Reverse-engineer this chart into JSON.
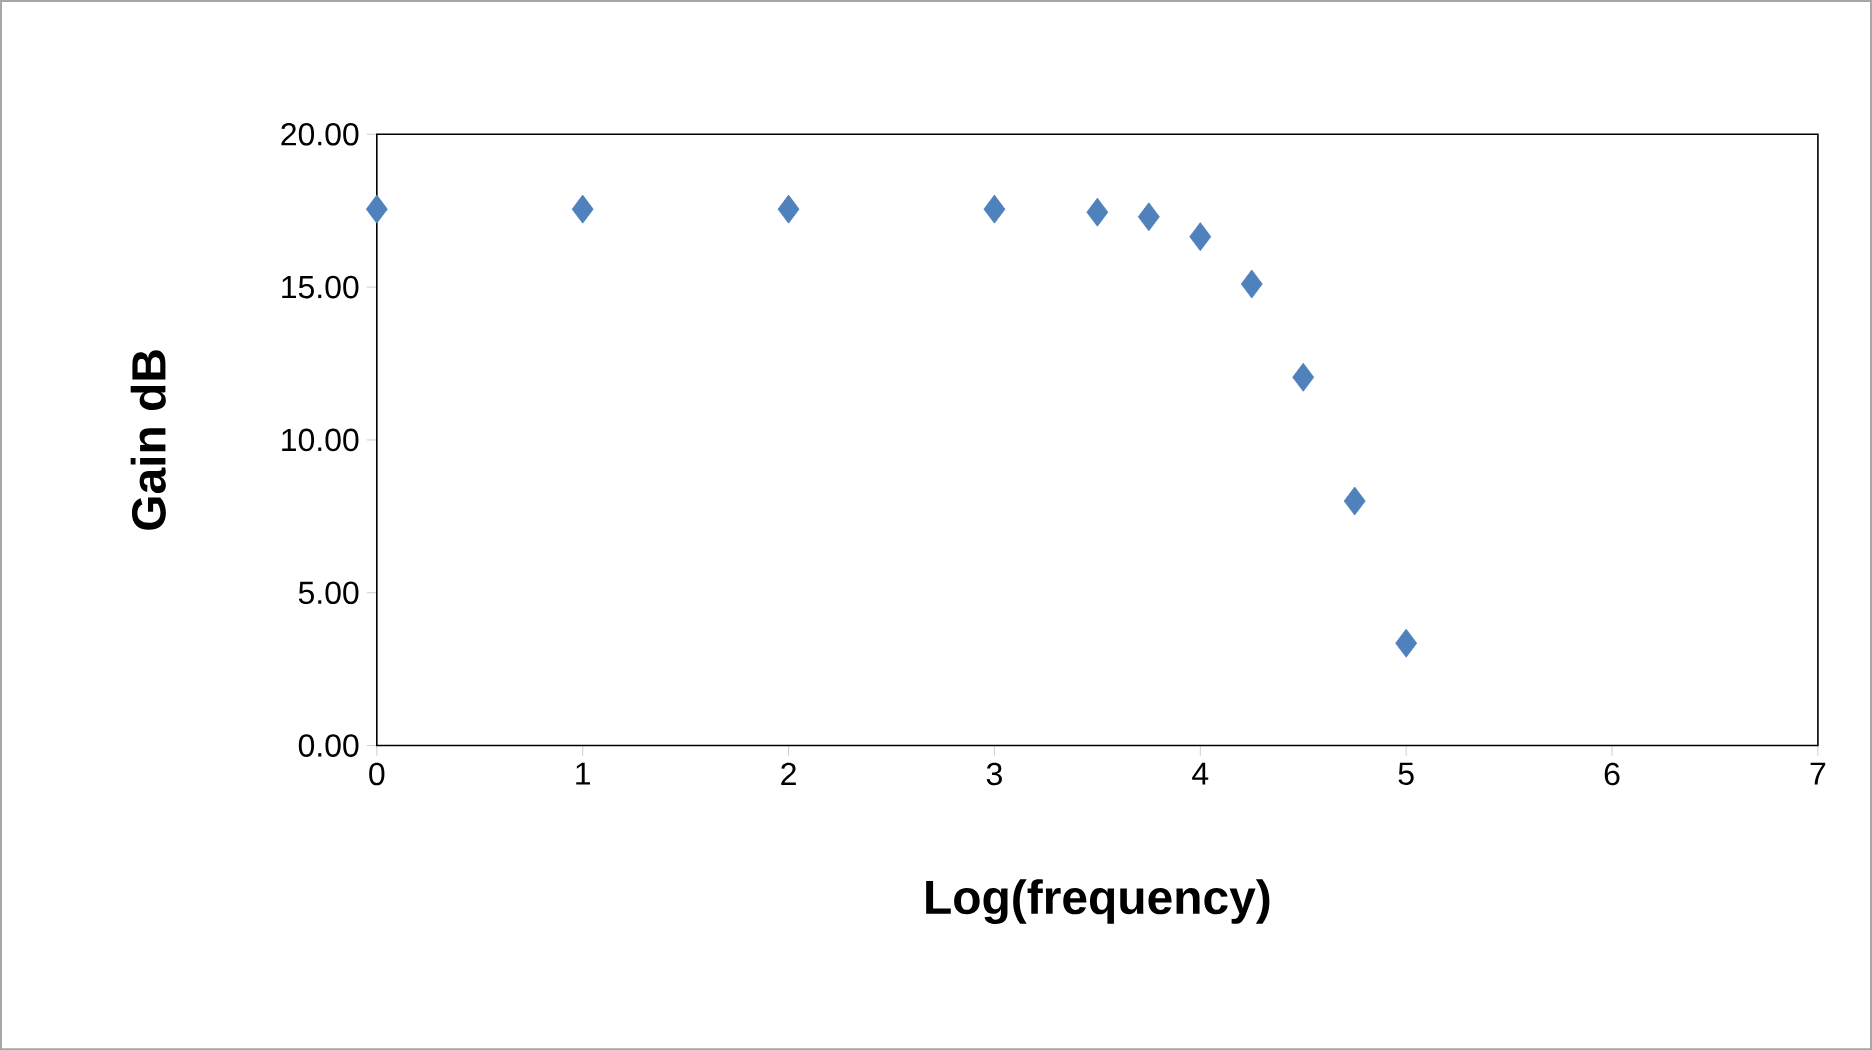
{
  "chart_data": {
    "type": "scatter",
    "xlabel": "Log(frequency)",
    "ylabel": "Gain dB",
    "x": [
      0,
      1,
      2,
      3,
      3.5,
      3.75,
      4,
      4.25,
      4.5,
      4.75,
      5
    ],
    "values": [
      17.55,
      17.55,
      17.55,
      17.55,
      17.45,
      17.3,
      16.65,
      15.1,
      12.05,
      8.0,
      3.35
    ],
    "color": "#4f81bd",
    "marker": "diamond",
    "xlim": [
      0,
      7
    ],
    "xticks": [
      0,
      1,
      2,
      3,
      4,
      5,
      6,
      7
    ],
    "ylim": [
      0,
      20
    ],
    "yticks": [
      {
        "value": 0,
        "label": "0.00"
      },
      {
        "value": 5,
        "label": "5.00"
      },
      {
        "value": 10,
        "label": "10.00"
      },
      {
        "value": 15,
        "label": "15.00"
      },
      {
        "value": 20,
        "label": "20.00"
      }
    ]
  }
}
